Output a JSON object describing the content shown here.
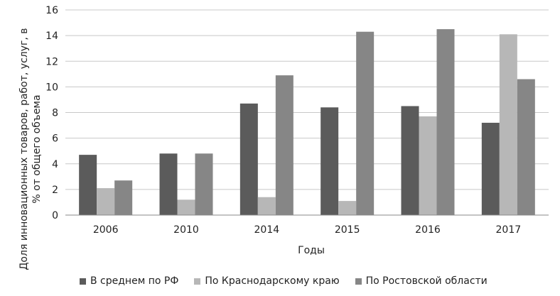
{
  "chart_data": {
    "type": "bar",
    "title": "",
    "xlabel": "Годы",
    "ylabel_line1": "Доля инновационных товаров, работ, услуг, в",
    "ylabel_line2": "% от общего объема",
    "ylim": [
      0,
      16
    ],
    "yticks": [
      0,
      2,
      4,
      6,
      8,
      10,
      12,
      14,
      16
    ],
    "categories": [
      "2006",
      "2010",
      "2014",
      "2015",
      "2016",
      "2017"
    ],
    "grid": true,
    "legend_position": "bottom",
    "series": [
      {
        "name": "В среднем по РФ",
        "color": "#5b5b5b",
        "values": [
          4.7,
          4.8,
          8.7,
          8.4,
          8.5,
          7.2
        ]
      },
      {
        "name": "По Краснодарскому краю",
        "color": "#b7b7b7",
        "values": [
          2.1,
          1.2,
          1.4,
          1.1,
          7.7,
          14.1
        ]
      },
      {
        "name": "По Ростовской области",
        "color": "#868686",
        "values": [
          2.7,
          4.8,
          10.9,
          14.3,
          14.5,
          10.6
        ]
      }
    ]
  }
}
